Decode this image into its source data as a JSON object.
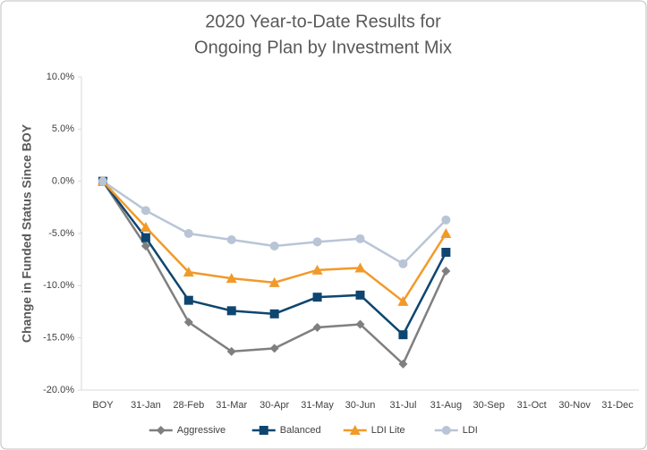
{
  "chart_data": {
    "type": "line",
    "title": [
      "2020 Year-to-Date Results for",
      "Ongoing Plan by Investment Mix"
    ],
    "y_label": "Change in Funded Status Since BOY",
    "categories": [
      "BOY",
      "31-Jan",
      "28-Feb",
      "31-Mar",
      "30-Apr",
      "31-May",
      "30-Jun",
      "31-Jul",
      "31-Aug",
      "30-Sep",
      "31-Oct",
      "30-Nov",
      "31-Dec"
    ],
    "series": [
      {
        "name": "Aggressive",
        "color": "#7f7f7f",
        "marker": "diamond",
        "values": [
          0,
          -6.2,
          -13.5,
          -16.3,
          -16.0,
          -14.0,
          -13.7,
          -17.5,
          -8.6,
          null,
          null,
          null,
          null
        ]
      },
      {
        "name": "Balanced",
        "color": "#0e4670",
        "marker": "square",
        "values": [
          0,
          -5.4,
          -11.4,
          -12.4,
          -12.7,
          -11.1,
          -10.9,
          -14.7,
          -6.8,
          null,
          null,
          null,
          null
        ]
      },
      {
        "name": "LDI Lite",
        "color": "#f19a2a",
        "marker": "triangle",
        "values": [
          0,
          -4.4,
          -8.7,
          -9.3,
          -9.7,
          -8.5,
          -8.3,
          -11.5,
          -5.0,
          null,
          null,
          null,
          null
        ]
      },
      {
        "name": "LDI",
        "color": "#b9c5d6",
        "marker": "circle",
        "values": [
          0,
          -2.8,
          -5.0,
          -5.6,
          -6.2,
          -5.8,
          -5.5,
          -7.9,
          -3.7,
          null,
          null,
          null,
          null
        ]
      }
    ],
    "ylim": [
      -20,
      10
    ],
    "yticks": [
      {
        "value": -20,
        "label": "-20.0%"
      },
      {
        "value": -15,
        "label": "-15.0%"
      },
      {
        "value": -10,
        "label": "-10.0%"
      },
      {
        "value": -5,
        "label": "-5.0%"
      },
      {
        "value": 0,
        "label": "0.0%"
      },
      {
        "value": 5,
        "label": "5.0%"
      },
      {
        "value": 10,
        "label": "10.0%"
      }
    ],
    "legend": "bottom"
  }
}
